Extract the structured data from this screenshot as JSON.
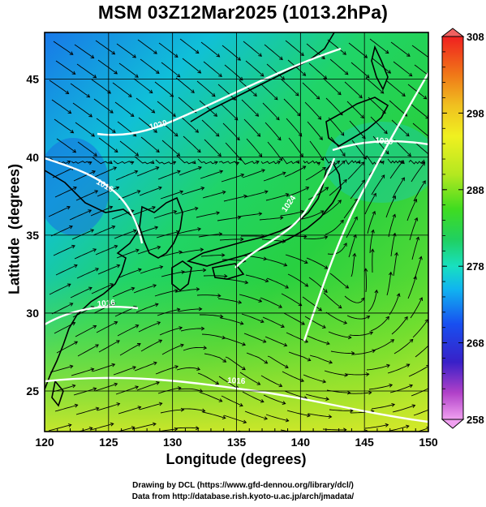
{
  "title": "MSM 03Z12Mar2025 (1013.2hPa)",
  "xlabel": "Longitude (degrees)",
  "ylabel": "Latitude  (degrees)",
  "credit_line1": "Drawing by DCL (https://www.gfd-dennou.org/library/dcl/)",
  "credit_line2": "Data from http://database.rish.kyoto-u.ac.jp/arch/jmadata/",
  "map": {
    "lon_range": [
      120,
      150
    ],
    "lat_range": [
      22.4,
      48
    ],
    "x_ticks": [
      "120",
      "125",
      "130",
      "135",
      "140",
      "145",
      "150"
    ],
    "y_ticks": [
      "25",
      "30",
      "35",
      "40",
      "45"
    ],
    "contour_labels": [
      "1016",
      "1020",
      "1016",
      "1024",
      "1020",
      "1016"
    ]
  },
  "colorbar": {
    "min": 258,
    "max": 308,
    "tick_labels": [
      "308",
      "298",
      "288",
      "278",
      "268",
      "258"
    ],
    "colors": [
      "#f0a0f0",
      "#b040c8",
      "#3820c8",
      "#1850f0",
      "#10b4f0",
      "#18e0c0",
      "#20d060",
      "#40dc20",
      "#b4e820",
      "#f0f020",
      "#f0c020",
      "#f07818",
      "#f02020",
      "#f06060"
    ]
  }
}
